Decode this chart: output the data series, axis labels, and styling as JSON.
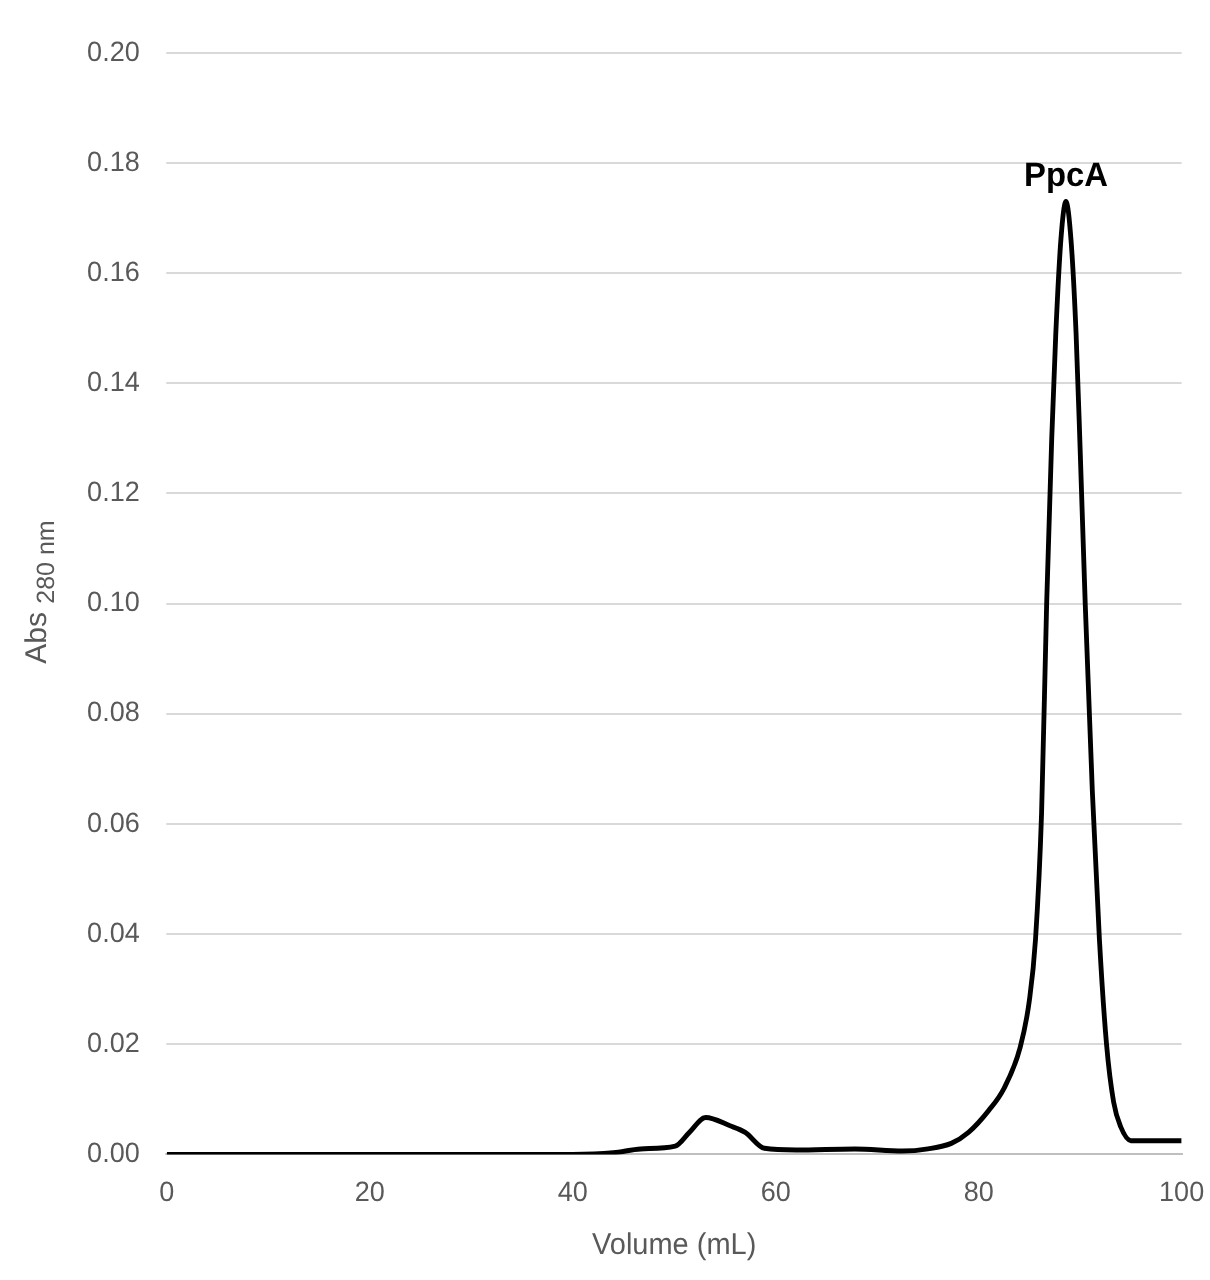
{
  "chart_data": {
    "type": "line",
    "xlabel": "Volume (mL)",
    "ylabel": "Abs $_{280 nm}$",
    "x": [
      0,
      10,
      20,
      30,
      40,
      44,
      46.7,
      50.1,
      51.5,
      53.1,
      55.5,
      57,
      58.9,
      62,
      67.8,
      72.5,
      75,
      77.3,
      79,
      81,
      82.5,
      84.1,
      85,
      85.6,
      86.2,
      86.7,
      87.2,
      87.6,
      88.1,
      88.6,
      89.1,
      89.6,
      90,
      90.5,
      91.2,
      91.9,
      92.6,
      93.3,
      94,
      95,
      97,
      100
    ],
    "series": [
      {
        "color": "#000000",
        "values": [
          0,
          0,
          0,
          0,
          0,
          0.0003,
          0.001,
          0.0015,
          0.004,
          0.0067,
          0.0052,
          0.004,
          0.0011,
          0.0008,
          0.001,
          0.0006,
          0.001,
          0.002,
          0.004,
          0.008,
          0.012,
          0.0195,
          0.028,
          0.039,
          0.062,
          0.1,
          0.13,
          0.149,
          0.166,
          0.173,
          0.166,
          0.149,
          0.128,
          0.1,
          0.066,
          0.039,
          0.02,
          0.0095,
          0.005,
          0.0025,
          0.0025,
          0.0025
        ]
      }
    ],
    "xlim": [
      0,
      100
    ],
    "xticks": [
      0,
      20,
      40,
      60,
      80,
      100
    ],
    "ylim": [
      0,
      0.2
    ],
    "yticks": [
      {
        "value": 0,
        "label": "0.00"
      },
      {
        "value": 0.02,
        "label": "0.02"
      },
      {
        "value": 0.04,
        "label": "0.04"
      },
      {
        "value": 0.06,
        "label": "0.06"
      },
      {
        "value": 0.08,
        "label": "0.08"
      },
      {
        "value": 0.1,
        "label": "0.10"
      },
      {
        "value": 0.12,
        "label": "0.12"
      },
      {
        "value": 0.14,
        "label": "0.14"
      },
      {
        "value": 0.16,
        "label": "0.16"
      },
      {
        "value": 0.18,
        "label": "0.18"
      },
      {
        "value": 0.2,
        "label": "0.20"
      }
    ],
    "grid": "y",
    "legend": false,
    "marker": "none",
    "line_style": "solid",
    "annotations": [
      {
        "text": "PpcA",
        "x": 88.6,
        "y": 0.173
      }
    ]
  }
}
